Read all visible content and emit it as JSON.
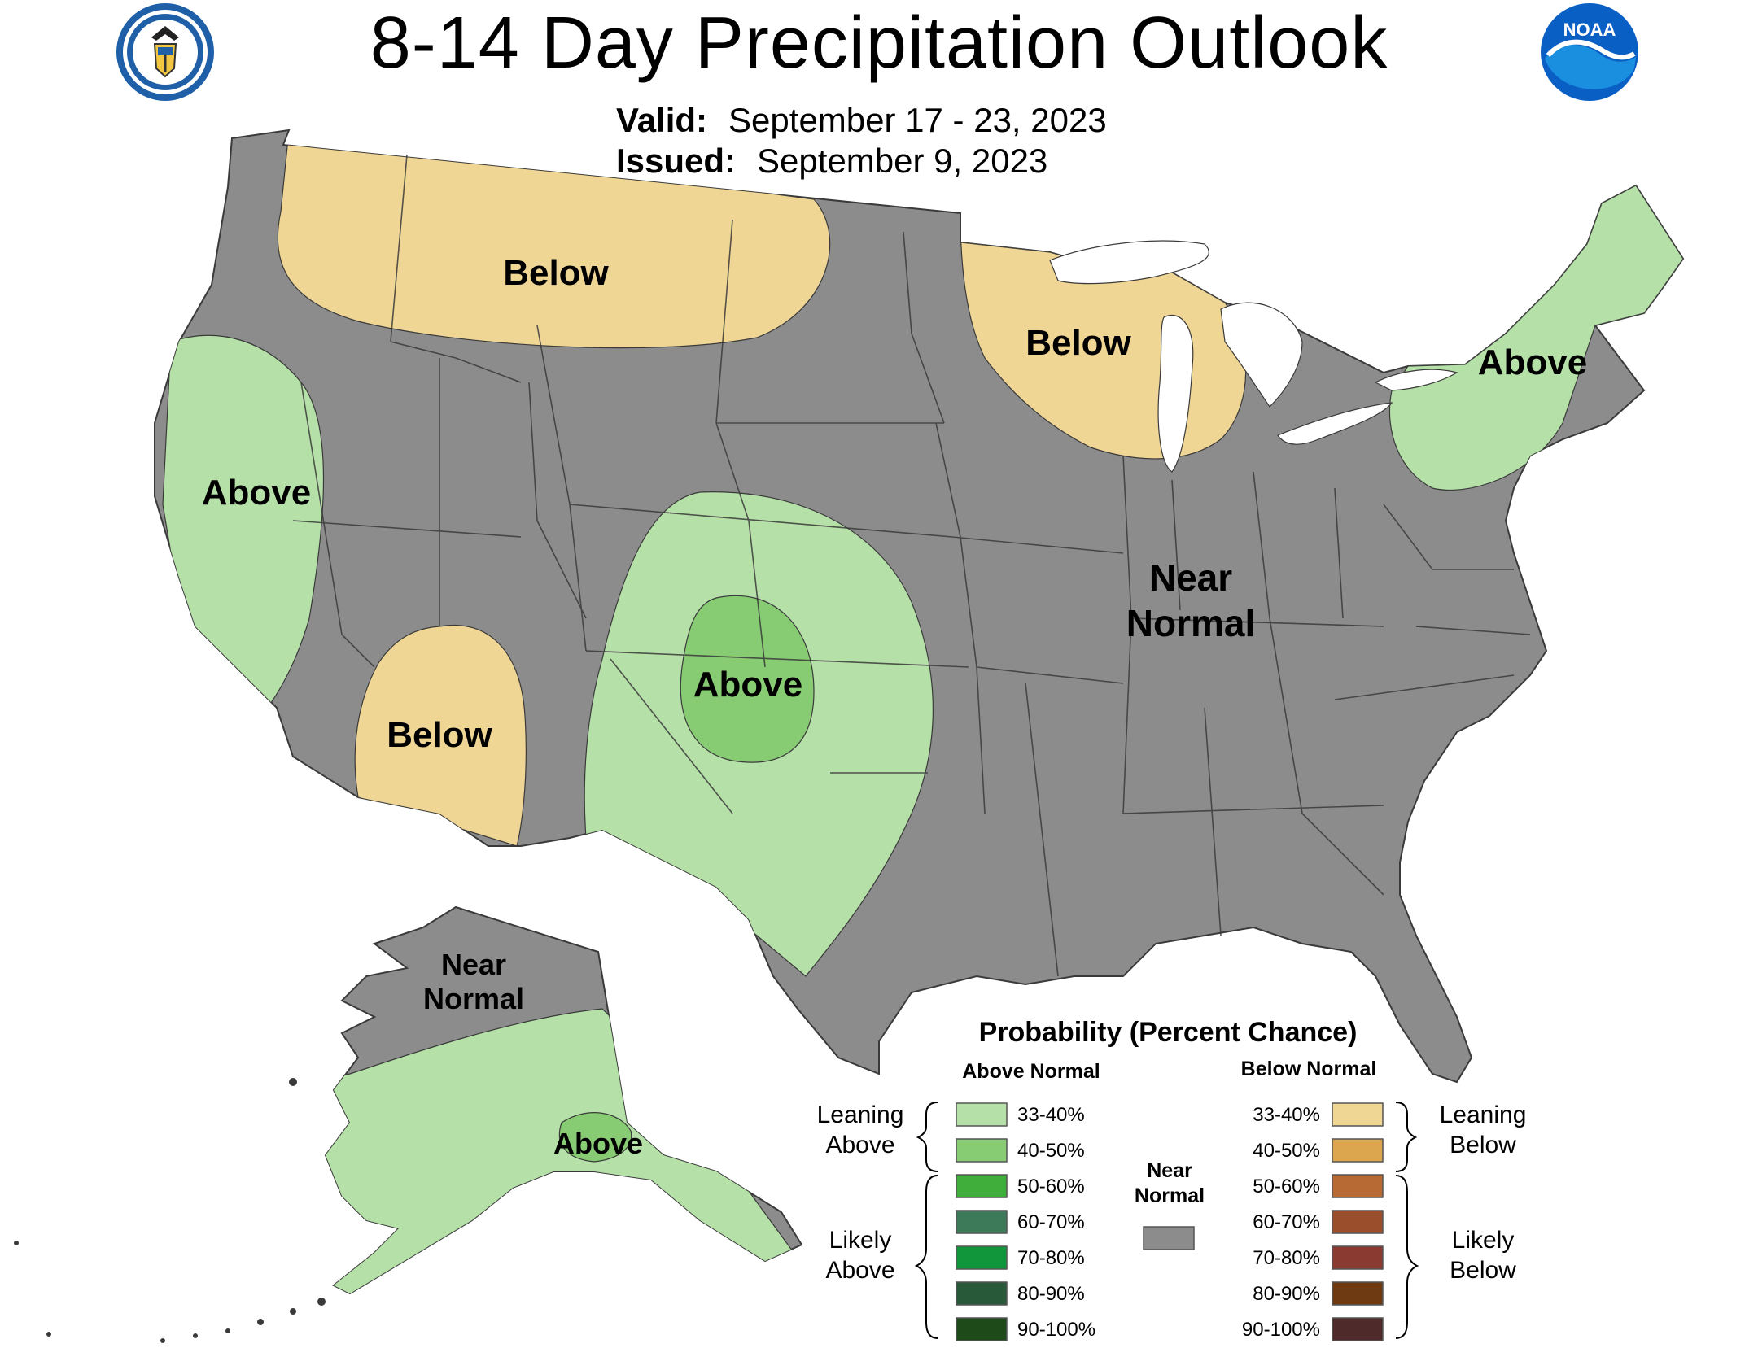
{
  "header": {
    "title": "8-14 Day Precipitation Outlook",
    "valid_label": "Valid:",
    "valid_value": "September 17 - 23, 2023",
    "issued_label": "Issued:",
    "issued_value": "September 9, 2023"
  },
  "logos": {
    "left": "department-of-commerce-seal",
    "right": "noaa-logo",
    "right_text": "NOAA"
  },
  "map": {
    "colors": {
      "near_normal": "#8c8c8c",
      "leaning_above": "#b5e0a8",
      "above_40_50": "#87cc73",
      "leaning_below": "#f0d695",
      "lakes": "#ffffff",
      "borders": "#3a3a3a"
    },
    "region_labels": {
      "nw_below": "Below",
      "west_above": "Above",
      "sw_below": "Below",
      "central_above": "Above",
      "ml_below": "Below",
      "ne_above": "Above",
      "near_normal_line1": "Near",
      "near_normal_line2": "Normal",
      "ak_near_line1": "Near",
      "ak_near_line2": "Normal",
      "ak_above": "Above"
    }
  },
  "legend": {
    "title": "Probability (Percent Chance)",
    "above_header": "Above Normal",
    "below_header": "Below Normal",
    "leaning_above_line1": "Leaning",
    "leaning_above_line2": "Above",
    "likely_above_line1": "Likely",
    "likely_above_line2": "Above",
    "leaning_below_line1": "Leaning",
    "leaning_below_line2": "Below",
    "likely_below_line1": "Likely",
    "likely_below_line2": "Below",
    "near_normal_line1": "Near",
    "near_normal_line2": "Normal",
    "near_normal_color": "#8c8c8c",
    "above_swatches": [
      {
        "label": "33-40%",
        "color": "#b5e0a8"
      },
      {
        "label": "40-50%",
        "color": "#87cc73"
      },
      {
        "label": "50-60%",
        "color": "#3fae3a"
      },
      {
        "label": "60-70%",
        "color": "#3c7a5a"
      },
      {
        "label": "70-80%",
        "color": "#12963c"
      },
      {
        "label": "80-90%",
        "color": "#285a3a"
      },
      {
        "label": "90-100%",
        "color": "#1e4a1a"
      }
    ],
    "below_swatches": [
      {
        "label": "33-40%",
        "color": "#f0d695"
      },
      {
        "label": "40-50%",
        "color": "#dba64d"
      },
      {
        "label": "50-60%",
        "color": "#b86a35"
      },
      {
        "label": "60-70%",
        "color": "#9a4e2c"
      },
      {
        "label": "70-80%",
        "color": "#8a3a30"
      },
      {
        "label": "80-90%",
        "color": "#6e3a12"
      },
      {
        "label": "90-100%",
        "color": "#4e2a2a"
      }
    ]
  }
}
